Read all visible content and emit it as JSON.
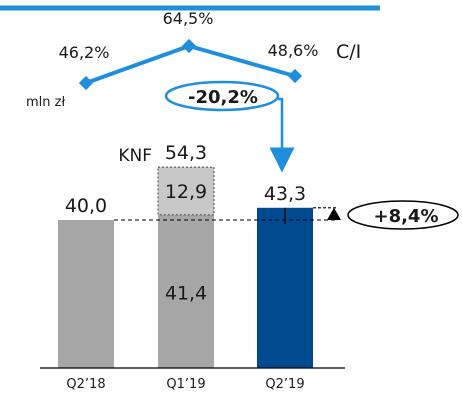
{
  "unit_label": "mln zł",
  "ci_label": "C/I",
  "knf_label": "KNF",
  "colors": {
    "grey": "#a6a6a6",
    "knf_grey": "#c8c8c8",
    "navy": "#004a8f",
    "accent": "#1f8fdc"
  },
  "chart_data": {
    "type": "bar",
    "categories": [
      "Q2’18",
      "Q1’19",
      "Q2’19"
    ],
    "series": [
      {
        "values": [
          40.0,
          41.4,
          43.3
        ]
      },
      {
        "name": "KNF",
        "values": [
          0,
          12.9,
          0
        ]
      }
    ],
    "value_labels": [
      "40,0",
      "41,4",
      "43,3"
    ],
    "knf_value_label": "12,9",
    "total_label": "54,3",
    "ci_values": [
      46.2,
      64.5,
      48.6
    ],
    "ci_labels": [
      "46,2%",
      "64,5%",
      "48,6%"
    ],
    "change_qoq": "-20,2%",
    "change_yoy": "+8,4%",
    "ylim": [
      0,
      60
    ]
  }
}
